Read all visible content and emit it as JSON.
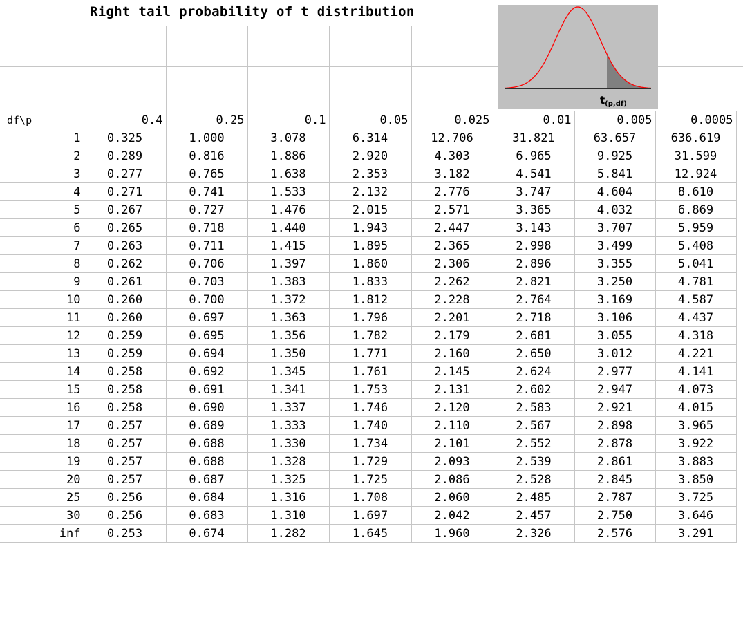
{
  "title": "Right tail probability of t distribution",
  "graph": {
    "label_main": "t",
    "label_sub": "(p,df)",
    "curve_color": "#ff0000",
    "fill_color": "#808080",
    "background": "#c0c0c0"
  },
  "table": {
    "corner": "df\\p",
    "columns": [
      "0.4",
      "0.25",
      "0.1",
      "0.05",
      "0.025",
      "0.01",
      "0.005",
      "0.0005"
    ],
    "rows": [
      {
        "df": "1",
        "values": [
          "0.325",
          "1.000",
          "3.078",
          "6.314",
          "12.706",
          "31.821",
          "63.657",
          "636.619"
        ]
      },
      {
        "df": "2",
        "values": [
          "0.289",
          "0.816",
          "1.886",
          "2.920",
          "4.303",
          "6.965",
          "9.925",
          "31.599"
        ]
      },
      {
        "df": "3",
        "values": [
          "0.277",
          "0.765",
          "1.638",
          "2.353",
          "3.182",
          "4.541",
          "5.841",
          "12.924"
        ]
      },
      {
        "df": "4",
        "values": [
          "0.271",
          "0.741",
          "1.533",
          "2.132",
          "2.776",
          "3.747",
          "4.604",
          "8.610"
        ]
      },
      {
        "df": "5",
        "values": [
          "0.267",
          "0.727",
          "1.476",
          "2.015",
          "2.571",
          "3.365",
          "4.032",
          "6.869"
        ]
      },
      {
        "df": "6",
        "values": [
          "0.265",
          "0.718",
          "1.440",
          "1.943",
          "2.447",
          "3.143",
          "3.707",
          "5.959"
        ]
      },
      {
        "df": "7",
        "values": [
          "0.263",
          "0.711",
          "1.415",
          "1.895",
          "2.365",
          "2.998",
          "3.499",
          "5.408"
        ]
      },
      {
        "df": "8",
        "values": [
          "0.262",
          "0.706",
          "1.397",
          "1.860",
          "2.306",
          "2.896",
          "3.355",
          "5.041"
        ]
      },
      {
        "df": "9",
        "values": [
          "0.261",
          "0.703",
          "1.383",
          "1.833",
          "2.262",
          "2.821",
          "3.250",
          "4.781"
        ]
      },
      {
        "df": "10",
        "values": [
          "0.260",
          "0.700",
          "1.372",
          "1.812",
          "2.228",
          "2.764",
          "3.169",
          "4.587"
        ]
      },
      {
        "df": "11",
        "values": [
          "0.260",
          "0.697",
          "1.363",
          "1.796",
          "2.201",
          "2.718",
          "3.106",
          "4.437"
        ]
      },
      {
        "df": "12",
        "values": [
          "0.259",
          "0.695",
          "1.356",
          "1.782",
          "2.179",
          "2.681",
          "3.055",
          "4.318"
        ]
      },
      {
        "df": "13",
        "values": [
          "0.259",
          "0.694",
          "1.350",
          "1.771",
          "2.160",
          "2.650",
          "3.012",
          "4.221"
        ]
      },
      {
        "df": "14",
        "values": [
          "0.258",
          "0.692",
          "1.345",
          "1.761",
          "2.145",
          "2.624",
          "2.977",
          "4.141"
        ]
      },
      {
        "df": "15",
        "values": [
          "0.258",
          "0.691",
          "1.341",
          "1.753",
          "2.131",
          "2.602",
          "2.947",
          "4.073"
        ]
      },
      {
        "df": "16",
        "values": [
          "0.258",
          "0.690",
          "1.337",
          "1.746",
          "2.120",
          "2.583",
          "2.921",
          "4.015"
        ]
      },
      {
        "df": "17",
        "values": [
          "0.257",
          "0.689",
          "1.333",
          "1.740",
          "2.110",
          "2.567",
          "2.898",
          "3.965"
        ]
      },
      {
        "df": "18",
        "values": [
          "0.257",
          "0.688",
          "1.330",
          "1.734",
          "2.101",
          "2.552",
          "2.878",
          "3.922"
        ]
      },
      {
        "df": "19",
        "values": [
          "0.257",
          "0.688",
          "1.328",
          "1.729",
          "2.093",
          "2.539",
          "2.861",
          "3.883"
        ]
      },
      {
        "df": "20",
        "values": [
          "0.257",
          "0.687",
          "1.325",
          "1.725",
          "2.086",
          "2.528",
          "2.845",
          "3.850"
        ]
      },
      {
        "df": "25",
        "values": [
          "0.256",
          "0.684",
          "1.316",
          "1.708",
          "2.060",
          "2.485",
          "2.787",
          "3.725"
        ]
      },
      {
        "df": "30",
        "values": [
          "0.256",
          "0.683",
          "1.310",
          "1.697",
          "2.042",
          "2.457",
          "2.750",
          "3.646"
        ]
      },
      {
        "df": "inf",
        "values": [
          "0.253",
          "0.674",
          "1.282",
          "1.645",
          "1.960",
          "2.326",
          "2.576",
          "3.291"
        ]
      }
    ]
  }
}
